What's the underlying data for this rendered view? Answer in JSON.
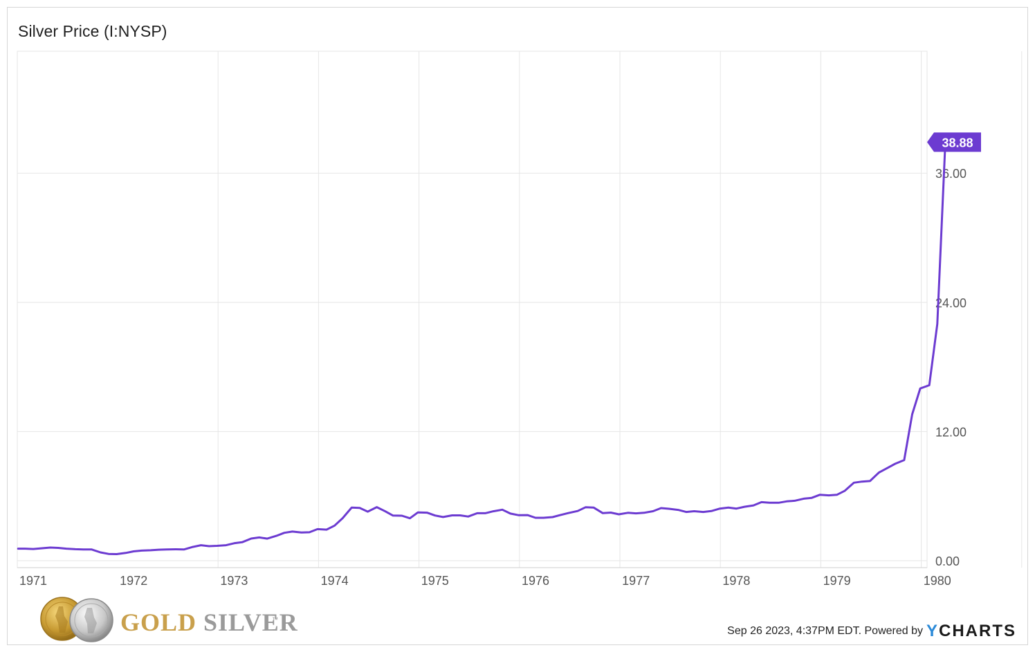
{
  "title": "Silver Price (I:NYSP)",
  "footer": {
    "timestamp": "Sep 26 2023, 4:37PM EDT. Powered by",
    "brand_y": "Y",
    "brand_rest": "CHARTS"
  },
  "logo": {
    "word_gold": "GOLD",
    "word_silver": "SILVER",
    "tm": "™"
  },
  "colors": {
    "line": "#6c3bd1",
    "badge": "#6c3bd1",
    "grid": "#e6e6e6",
    "ycharts_accent": "#2b8ad8"
  },
  "chart_data": {
    "type": "line",
    "xlim": [
      1970.85,
      1980.1
    ],
    "ylim": [
      0,
      48
    ],
    "y_ticks": [
      0,
      12,
      24,
      36
    ],
    "y_tick_labels": [
      "0.00",
      "12.00",
      "24.00",
      "36.00"
    ],
    "x_ticks": [
      1971,
      1972,
      1973,
      1974,
      1975,
      1976,
      1977,
      1978,
      1979,
      1980
    ],
    "x_tick_labels": [
      "1971",
      "1972",
      "1973",
      "1974",
      "1975",
      "1976",
      "1977",
      "1978",
      "1979",
      "1980"
    ],
    "last_value_label": "38.88",
    "grid": true,
    "series": [
      {
        "x": [
          1970.85,
          1970.92,
          1971.0,
          1971.08,
          1971.17,
          1971.25,
          1971.33,
          1971.42,
          1971.5,
          1971.58,
          1971.67,
          1971.75,
          1971.83,
          1971.92,
          1972.0,
          1972.08,
          1972.17,
          1972.25,
          1972.33,
          1972.42,
          1972.5,
          1972.58,
          1972.67,
          1972.75,
          1972.83,
          1972.92,
          1973.0,
          1973.08,
          1973.17,
          1973.25,
          1973.33,
          1973.42,
          1973.5,
          1973.58,
          1973.67,
          1973.75,
          1973.83,
          1973.92,
          1974.0,
          1974.08,
          1974.17,
          1974.25,
          1974.33,
          1974.42,
          1974.5,
          1974.58,
          1974.67,
          1974.75,
          1974.83,
          1974.92,
          1975.0,
          1975.08,
          1975.17,
          1975.25,
          1975.33,
          1975.42,
          1975.5,
          1975.58,
          1975.67,
          1975.75,
          1975.83,
          1975.92,
          1976.0,
          1976.08,
          1976.17,
          1976.25,
          1976.33,
          1976.42,
          1976.5,
          1976.58,
          1976.67,
          1976.75,
          1976.83,
          1976.92,
          1977.0,
          1977.08,
          1977.17,
          1977.25,
          1977.33,
          1977.42,
          1977.5,
          1977.58,
          1977.67,
          1977.75,
          1977.83,
          1977.92,
          1978.0,
          1978.08,
          1978.17,
          1978.25,
          1978.33,
          1978.42,
          1978.5,
          1978.58,
          1978.67,
          1978.75,
          1978.83,
          1978.92,
          1979.0,
          1979.08,
          1979.17,
          1979.25,
          1979.33,
          1979.42,
          1979.5,
          1979.58,
          1979.67,
          1979.75,
          1979.83,
          1979.92,
          1980.0,
          1980.08
        ],
        "y": [
          1.12,
          1.12,
          1.09,
          1.15,
          1.22,
          1.19,
          1.12,
          1.07,
          1.05,
          1.05,
          0.77,
          0.63,
          0.61,
          0.72,
          0.87,
          0.94,
          0.97,
          1.02,
          1.04,
          1.06,
          1.04,
          1.26,
          1.44,
          1.35,
          1.38,
          1.44,
          1.62,
          1.72,
          2.06,
          2.16,
          2.05,
          2.31,
          2.59,
          2.71,
          2.62,
          2.64,
          2.93,
          2.89,
          3.26,
          3.95,
          4.94,
          4.9,
          4.56,
          4.98,
          4.61,
          4.2,
          4.18,
          3.94,
          4.49,
          4.46,
          4.2,
          4.06,
          4.21,
          4.21,
          4.1,
          4.41,
          4.41,
          4.59,
          4.74,
          4.38,
          4.23,
          4.24,
          3.99,
          3.99,
          4.05,
          4.25,
          4.43,
          4.62,
          4.97,
          4.93,
          4.42,
          4.47,
          4.31,
          4.45,
          4.4,
          4.45,
          4.6,
          4.89,
          4.82,
          4.72,
          4.53,
          4.6,
          4.53,
          4.61,
          4.83,
          4.94,
          4.84,
          5.01,
          5.14,
          5.44,
          5.38,
          5.38,
          5.51,
          5.57,
          5.76,
          5.84,
          6.12,
          6.07,
          6.12,
          6.5,
          7.25,
          7.35,
          7.4,
          8.2,
          8.6,
          9.0,
          9.35,
          13.6,
          16.0,
          16.3,
          22.0,
          38.88
        ]
      }
    ]
  }
}
